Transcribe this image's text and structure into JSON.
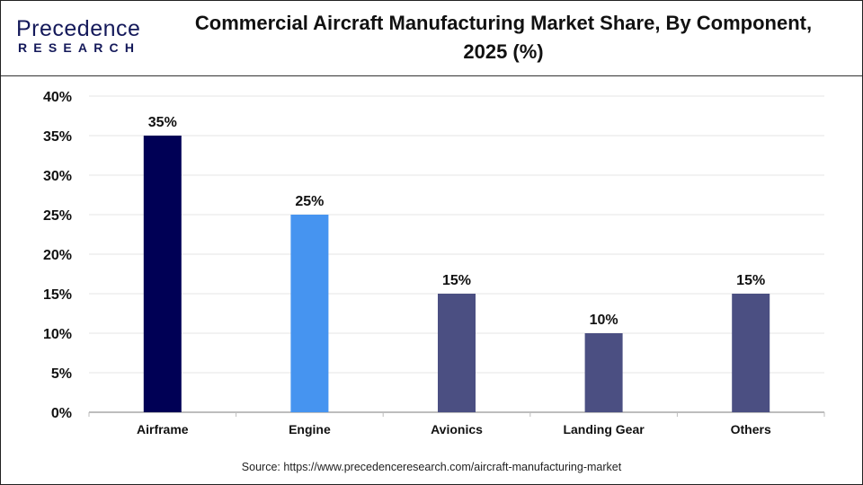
{
  "logo": {
    "text_line1": "Precedence",
    "text_line2": "RESEARCH"
  },
  "colors": {
    "airframe": "#000055",
    "engine": "#4694F0",
    "others": "#4B4F82",
    "grid": "#e6e6e6",
    "axis": "#bdbdbd"
  },
  "chart_data": {
    "type": "bar",
    "title": "Commercial Aircraft Manufacturing  Market Share, By Component, 2025 (%)",
    "categories": [
      "Airframe",
      "Engine",
      "Avionics",
      "Landing Gear",
      "Others"
    ],
    "values": [
      35,
      25,
      15,
      10,
      15
    ],
    "data_labels": [
      "35%",
      "25%",
      "15%",
      "10%",
      "15%"
    ],
    "bar_colors": [
      "#000055",
      "#4694F0",
      "#4B4F82",
      "#4B4F82",
      "#4B4F82"
    ],
    "yticks": [
      0,
      5,
      10,
      15,
      20,
      25,
      30,
      35,
      40
    ],
    "ytick_labels": [
      "0%",
      "5%",
      "10%",
      "15%",
      "20%",
      "25%",
      "30%",
      "35%",
      "40%"
    ],
    "ylim": [
      0,
      40
    ],
    "xlabel": "",
    "ylabel": "",
    "grid": true,
    "legend": "none"
  },
  "source": "Source: https://www.precedenceresearch.com/aircraft-manufacturing-market"
}
